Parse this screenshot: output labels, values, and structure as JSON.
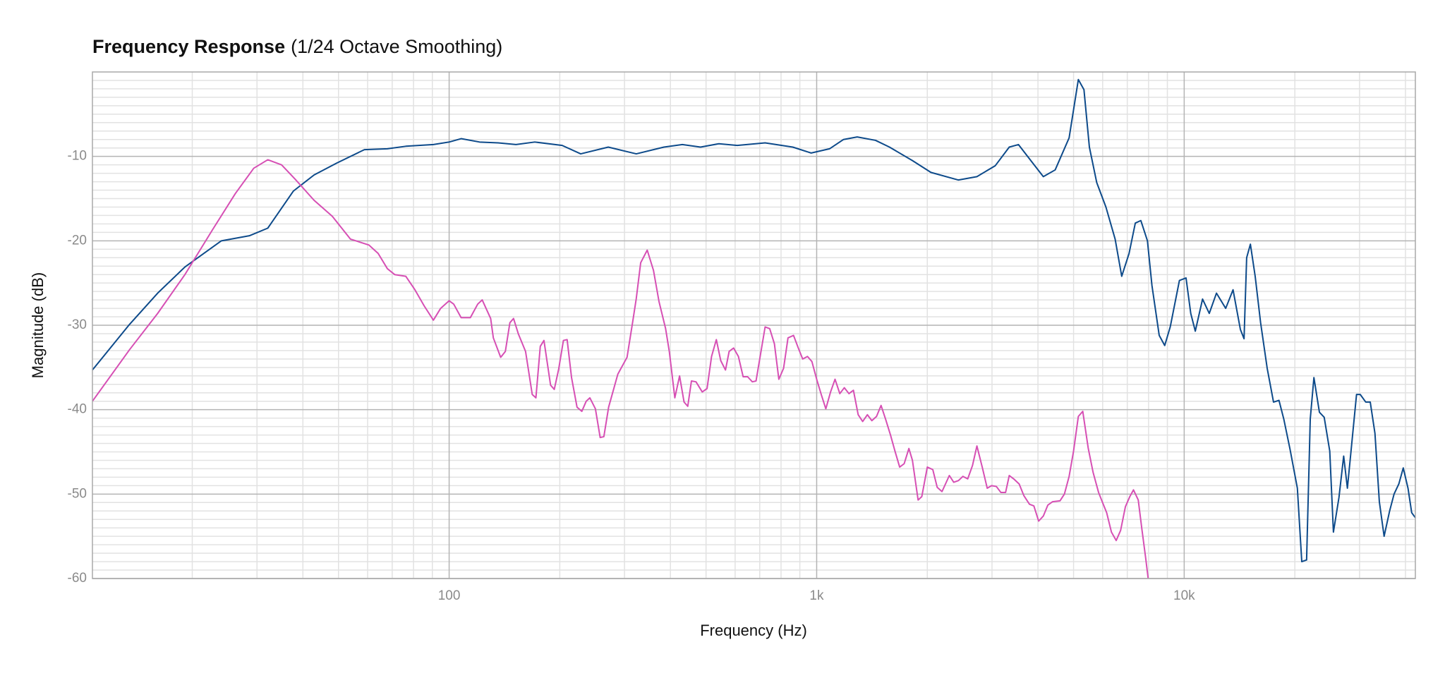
{
  "chart_data": {
    "type": "line",
    "title": "Frequency Response",
    "subtitle": "(1/24 Octave Smoothing)",
    "x_label": "Frequency (Hz)",
    "y_label": "Magnitude (dB)",
    "xscale": "log",
    "xlim": [
      10.7,
      42560
    ],
    "ylim": [
      -60,
      0
    ],
    "xticks": [
      100,
      {
        "value": 1000,
        "label": "1k"
      },
      {
        "value": 10000,
        "label": "10k"
      }
    ],
    "yticks": [
      -60,
      -50,
      -40,
      -30,
      -20,
      -10
    ],
    "xminor": [
      20,
      30,
      40,
      50,
      60,
      70,
      80,
      90,
      200,
      300,
      400,
      500,
      600,
      700,
      800,
      900,
      2000,
      3000,
      4000,
      5000,
      6000,
      7000,
      8000,
      9000,
      20000,
      30000,
      40000
    ],
    "yminor": [
      -59,
      -58,
      -57,
      -56,
      -55,
      -54,
      -53,
      -52,
      -51,
      -49,
      -48,
      -47,
      -46,
      -45,
      -44,
      -43,
      -42,
      -41,
      -39,
      -38,
      -37,
      -36,
      -35,
      -34,
      -33,
      -32,
      -31,
      -29,
      -28,
      -27,
      -26,
      -25,
      -24,
      -23,
      -22,
      -21,
      -19,
      -18,
      -17,
      -16,
      -15,
      -14,
      -13,
      -12,
      -11,
      -9,
      -8,
      -7,
      -6,
      -5,
      -4,
      -3,
      -2,
      -1
    ],
    "grid": true,
    "series": [
      {
        "color": "#0d4a8a",
        "x": [
          10.7,
          13.5,
          16.1,
          19.1,
          24.0,
          28.6,
          32.1,
          37.7,
          42.9,
          49.4,
          58.8,
          67.9,
          76.2,
          90.6,
          100,
          107.8,
          121,
          136,
          152,
          171,
          203,
          228,
          271,
          323,
          384,
          431,
          483,
          542,
          608,
          724,
          861,
          966,
          1084,
          1183,
          1289,
          1446,
          1578,
          1822,
          2046,
          2431,
          2729,
          3062,
          3342,
          3540,
          3857,
          4137,
          4456,
          4863,
          5152,
          5337,
          5521,
          5781,
          6124,
          6488,
          6761,
          7079,
          7362,
          7621,
          7943,
          8171,
          8551,
          8851,
          9162,
          9705,
          10116,
          10420,
          10720,
          11220,
          11700,
          12240,
          12970,
          13580,
          14220,
          14550,
          14790,
          15140,
          15600,
          16140,
          16820,
          17500,
          18110,
          18660,
          19410,
          20320,
          20890,
          21530,
          22030,
          22540,
          23330,
          24040,
          24890,
          25470,
          26370,
          27160,
          27800,
          28440,
          29440,
          30130,
          31190,
          32080,
          33040,
          33960,
          34990,
          36220,
          37240,
          38370,
          39450,
          40640,
          41590,
          42560
        ],
        "values": [
          -35.3,
          -29.9,
          -26.2,
          -23.1,
          -20.0,
          -19.4,
          -18.5,
          -14.1,
          -12.2,
          -10.8,
          -9.2,
          -9.1,
          -8.8,
          -8.6,
          -8.3,
          -7.9,
          -8.3,
          -8.4,
          -8.6,
          -8.3,
          -8.7,
          -9.7,
          -8.9,
          -9.7,
          -8.9,
          -8.6,
          -8.9,
          -8.5,
          -8.7,
          -8.4,
          -8.9,
          -9.6,
          -9.1,
          -8.0,
          -7.7,
          -8.1,
          -8.9,
          -10.5,
          -11.9,
          -12.8,
          -12.4,
          -11.1,
          -8.9,
          -8.6,
          -10.7,
          -12.4,
          -11.6,
          -7.8,
          -0.9,
          -2.1,
          -8.9,
          -13.1,
          -16.0,
          -19.8,
          -24.2,
          -21.5,
          -17.9,
          -17.6,
          -20.0,
          -25.3,
          -31.2,
          -32.4,
          -30.2,
          -24.7,
          -24.4,
          -28.6,
          -30.7,
          -26.9,
          -28.6,
          -26.2,
          -28.0,
          -25.8,
          -30.5,
          -31.6,
          -22.0,
          -20.4,
          -24.2,
          -29.7,
          -35.1,
          -39.1,
          -38.9,
          -41.1,
          -44.7,
          -49.3,
          -58.0,
          -57.8,
          -41.1,
          -36.2,
          -40.3,
          -40.9,
          -44.9,
          -54.5,
          -50.4,
          -45.5,
          -49.3,
          -44.9,
          -38.2,
          -38.2,
          -39.1,
          -39.1,
          -42.8,
          -50.9,
          -55.0,
          -52.0,
          -50.0,
          -48.8,
          -46.9,
          -49.3,
          -52.2,
          -52.8
        ]
      },
      {
        "color": "#d64fb4",
        "x": [
          10.7,
          13.5,
          16.1,
          19.1,
          22.7,
          26.2,
          29.4,
          32.1,
          35.0,
          38.1,
          42.9,
          48.1,
          53.9,
          60.5,
          64.1,
          67.9,
          71.1,
          76.2,
          80.7,
          85.5,
          90.6,
          94.8,
          100,
          102.9,
          107.8,
          114.2,
          119.6,
          123.0,
          129.7,
          131.9,
          138.1,
          142.2,
          146.3,
          149.7,
          154.2,
          161.4,
          168.3,
          172.2,
          177.0,
          181.1,
          188.8,
          193.2,
          198.6,
          204.6,
          209.4,
          215.3,
          222.8,
          229.6,
          236.0,
          241.5,
          250.0,
          257.6,
          263.6,
          271.6,
          287.7,
          297.8,
          304.8,
          315.5,
          322.8,
          332.0,
          345.9,
          359.7,
          372.4,
          388.1,
          397.2,
          411.2,
          423.6,
          435.7,
          445.9,
          456.3,
          469.5,
          488.3,
          503.2,
          517.6,
          533.3,
          548.3,
          564.8,
          577.9,
          594.3,
          612.4,
          630.9,
          648.7,
          668.3,
          683.9,
          703.1,
          724,
          745.0,
          767.4,
          789,
          812.8,
          835.6,
          865.0,
          891.3,
          916.2,
          944.1,
          970.6,
          1000,
          1029,
          1059,
          1091,
          1122,
          1156,
          1189,
          1224,
          1259,
          1297,
          1334,
          1374,
          1413,
          1455,
          1497,
          1542,
          1588,
          1633,
          1682,
          1730,
          1782,
          1822,
          1888,
          1932,
          2000,
          2070,
          2128,
          2193,
          2296,
          2360,
          2431,
          2500,
          2576,
          2655,
          2729,
          2825,
          2911,
          2992,
          3083,
          3170,
          3266,
          3342,
          3436,
          3556,
          3664,
          3793,
          3899,
          4018,
          4137,
          4256,
          4385,
          4592,
          4721,
          4863,
          5000,
          5152,
          5297,
          5483,
          5649,
          5848,
          5984,
          6152,
          6339,
          6531,
          6714,
          6918,
          7112,
          7278,
          7499,
          7674,
          7852,
          7980
        ],
        "values": [
          -39.0,
          -32.9,
          -28.6,
          -24.0,
          -18.7,
          -14.4,
          -11.4,
          -10.4,
          -11.0,
          -12.7,
          -15.2,
          -17.1,
          -19.8,
          -20.5,
          -21.5,
          -23.3,
          -24.0,
          -24.2,
          -25.8,
          -27.7,
          -29.4,
          -28.0,
          -27.1,
          -27.5,
          -29.1,
          -29.1,
          -27.5,
          -27.0,
          -29.2,
          -31.5,
          -33.8,
          -33.1,
          -29.7,
          -29.2,
          -31.0,
          -33.1,
          -38.2,
          -38.6,
          -32.5,
          -31.8,
          -37.1,
          -37.6,
          -35.2,
          -31.8,
          -31.7,
          -36.2,
          -39.7,
          -40.2,
          -39.0,
          -38.6,
          -39.9,
          -43.3,
          -43.2,
          -39.7,
          -35.8,
          -34.6,
          -33.8,
          -29.7,
          -26.9,
          -22.6,
          -21.1,
          -23.5,
          -27.2,
          -30.4,
          -33.1,
          -38.6,
          -36.0,
          -39.1,
          -39.6,
          -36.6,
          -36.7,
          -37.9,
          -37.5,
          -33.7,
          -31.7,
          -34.2,
          -35.3,
          -33.1,
          -32.7,
          -33.7,
          -36.1,
          -36.1,
          -36.7,
          -36.6,
          -33.5,
          -30.2,
          -30.4,
          -32.2,
          -36.4,
          -35.1,
          -31.5,
          -31.2,
          -32.7,
          -34.0,
          -33.7,
          -34.3,
          -36.4,
          -38.2,
          -39.9,
          -37.9,
          -36.4,
          -38.1,
          -37.4,
          -38.1,
          -37.7,
          -40.6,
          -41.4,
          -40.6,
          -41.3,
          -40.8,
          -39.5,
          -41.2,
          -43.0,
          -44.9,
          -46.8,
          -46.4,
          -44.6,
          -46.0,
          -50.7,
          -50.3,
          -46.8,
          -47.1,
          -49.2,
          -49.7,
          -47.8,
          -48.6,
          -48.4,
          -47.9,
          -48.2,
          -46.6,
          -44.3,
          -46.9,
          -49.3,
          -49.0,
          -49.1,
          -49.8,
          -49.8,
          -47.8,
          -48.2,
          -48.8,
          -50.2,
          -51.2,
          -51.4,
          -53.2,
          -52.6,
          -51.3,
          -50.9,
          -50.8,
          -50.0,
          -47.9,
          -44.9,
          -40.8,
          -40.2,
          -44.6,
          -47.4,
          -49.8,
          -50.9,
          -52.2,
          -54.5,
          -55.5,
          -54.3,
          -51.5,
          -50.3,
          -49.5,
          -50.7,
          -54.2,
          -57.5,
          -60.0
        ]
      }
    ]
  }
}
